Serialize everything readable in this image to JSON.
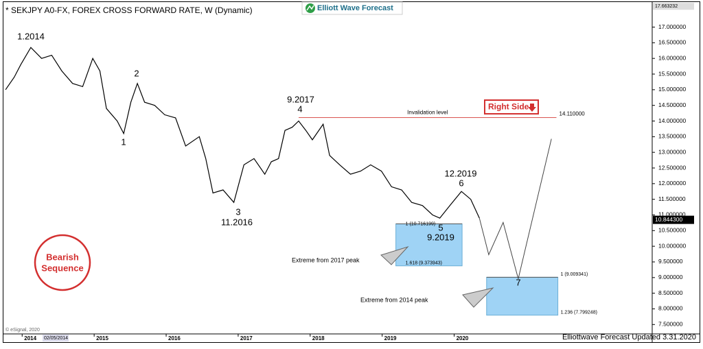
{
  "chart_data": {
    "type": "line",
    "title": "* SEKJPY A0-FX, FOREX CROSS FORWARD RATE, W (Dynamic)",
    "brand": "Elliott Wave Forecast",
    "footer": "Elliottwave Forecast Updated 3.31.2020",
    "copyright": "© eSignal, 2020",
    "cursor_date": "02/05/2014",
    "color": "#000000",
    "x": [
      2013.77,
      2013.89,
      2013.98,
      2014.12,
      2014.27,
      2014.41,
      2014.55,
      2014.7,
      2014.84,
      2014.98,
      2015.08,
      2015.17,
      2015.32,
      2015.41,
      2015.51,
      2015.6,
      2015.7,
      2015.84,
      2015.98,
      2016.13,
      2016.27,
      2016.46,
      2016.55,
      2016.65,
      2016.79,
      2016.94,
      2017.08,
      2017.22,
      2017.37,
      2017.46,
      2017.56,
      2017.65,
      2017.75,
      2017.84,
      2017.94,
      2018.03,
      2018.18,
      2018.27,
      2018.41,
      2018.56,
      2018.7,
      2018.84,
      2018.99,
      2019.13,
      2019.27,
      2019.41,
      2019.56,
      2019.7,
      2019.8,
      2019.94,
      2020.1,
      2020.23,
      2020.35
    ],
    "values": [
      15.0,
      15.4,
      15.8,
      16.35,
      16.0,
      16.1,
      15.6,
      15.2,
      15.1,
      16.0,
      15.6,
      14.4,
      14.0,
      13.6,
      14.6,
      15.2,
      14.6,
      14.5,
      14.2,
      14.1,
      13.2,
      13.5,
      12.8,
      11.7,
      11.8,
      11.4,
      12.6,
      12.8,
      12.3,
      12.7,
      12.8,
      13.7,
      13.8,
      14.0,
      13.7,
      13.4,
      13.9,
      12.9,
      12.6,
      12.3,
      12.4,
      12.6,
      12.4,
      11.9,
      11.8,
      11.4,
      11.3,
      11.0,
      10.9,
      11.3,
      11.75,
      11.5,
      10.9
    ],
    "projection": {
      "color": "#444444",
      "x": [
        2020.35,
        2020.48,
        2020.68,
        2020.89,
        2021.35
      ],
      "values": [
        10.9,
        9.73,
        10.76,
        8.96,
        13.43
      ]
    },
    "invalidation": {
      "text": "Invalidation level",
      "value": 14.11,
      "label": "14.110000",
      "x_start": 2017.84,
      "x_end": 2021.42,
      "color": "#d9534f"
    },
    "zones": [
      {
        "x0": 2019.19,
        "x1": 2020.11,
        "top": 10.716199,
        "bottom": 9.373943,
        "top_label": "1 (10.716199)",
        "bottom_label": "1.618 (9.373943)",
        "text": "Extreme from 2017 peak",
        "color": "#9fd3f5"
      },
      {
        "x0": 2020.45,
        "x1": 2021.44,
        "top": 9.009341,
        "bottom": 7.799248,
        "top_label": "1 (9.009341)",
        "bottom_label": "1.236 (7.799248)",
        "text": "Extreme from 2014 peak",
        "color": "#9fd3f5"
      }
    ],
    "last_price": {
      "value": 10.8443,
      "label": "10.844300"
    },
    "top_price": {
      "value": 17.663232,
      "label": "17.663232"
    },
    "waves": [
      "1.2014",
      "2",
      "1",
      "3",
      "11.2016",
      "9.2017",
      "4",
      "12.2019",
      "6",
      "5",
      "9.2019",
      "7"
    ],
    "badge": "Right Side",
    "sequence": [
      "Bearish",
      "Sequence"
    ],
    "xlim": [
      2013.74,
      2022.75
    ],
    "xticks": [
      2014,
      2015,
      2016,
      2017,
      2018,
      2019,
      2020
    ],
    "ylim": [
      7.2,
      17.8
    ],
    "yticks": [
      {
        "value": 7.5,
        "label": "7.500000"
      },
      {
        "value": 8,
        "label": "8.000000"
      },
      {
        "value": 8.5,
        "label": "8.500000"
      },
      {
        "value": 9,
        "label": "9.000000"
      },
      {
        "value": 9.5,
        "label": "9.500000"
      },
      {
        "value": 10,
        "label": "10.000000"
      },
      {
        "value": 10.5,
        "label": "10.500000"
      },
      {
        "value": 11,
        "label": "11.000000"
      },
      {
        "value": 11.5,
        "label": "11.500000"
      },
      {
        "value": 12,
        "label": "12.000000"
      },
      {
        "value": 12.5,
        "label": "12.500000"
      },
      {
        "value": 13,
        "label": "13.000000"
      },
      {
        "value": 13.5,
        "label": "13.500000"
      },
      {
        "value": 14,
        "label": "14.000000"
      },
      {
        "value": 14.5,
        "label": "14.500000"
      },
      {
        "value": 15,
        "label": "15.000000"
      },
      {
        "value": 15.5,
        "label": "15.500000"
      },
      {
        "value": 16,
        "label": "16.000000"
      },
      {
        "value": 16.5,
        "label": "16.500000"
      },
      {
        "value": 17,
        "label": "17.000000"
      }
    ],
    "grid": false
  }
}
